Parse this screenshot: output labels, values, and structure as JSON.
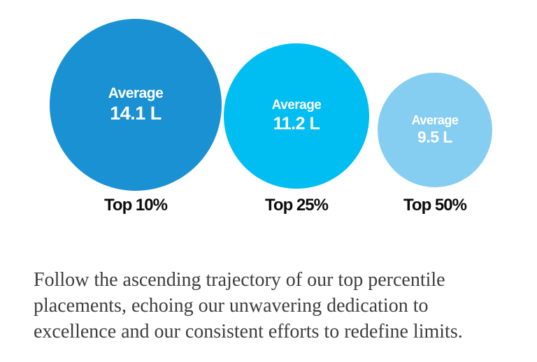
{
  "chart_data": {
    "type": "bubble",
    "title": "",
    "categories": [
      "Top 10%",
      "Top 25%",
      "Top 50%"
    ],
    "series": [
      {
        "name": "Average",
        "values": [
          14.1,
          11.2,
          9.5
        ],
        "unit": "L",
        "value_labels": [
          "14.1 L",
          "11.2 L",
          "9.5 L"
        ]
      }
    ],
    "colors": [
      "#1a91d2",
      "#00bdf2",
      "#85cef2"
    ],
    "legend_position": "none",
    "layout": "three circles bottom-aligned, area decreasing left to right, category labels beneath each circle"
  },
  "bubbles": [
    {
      "series_label": "Average",
      "value_label": "14.1 L",
      "category": "Top 10%",
      "color": "#1a91d2"
    },
    {
      "series_label": "Average",
      "value_label": "11.2 L",
      "category": "Top 25%",
      "color": "#00bdf2"
    },
    {
      "series_label": "Average",
      "value_label": "9.5 L",
      "category": "Top 50%",
      "color": "#85cef2"
    }
  ],
  "caption": "Follow the ascending trajectory of our top percentile placements, echoing our unwavering dedication to excellence and our consistent efforts to redefine limits."
}
